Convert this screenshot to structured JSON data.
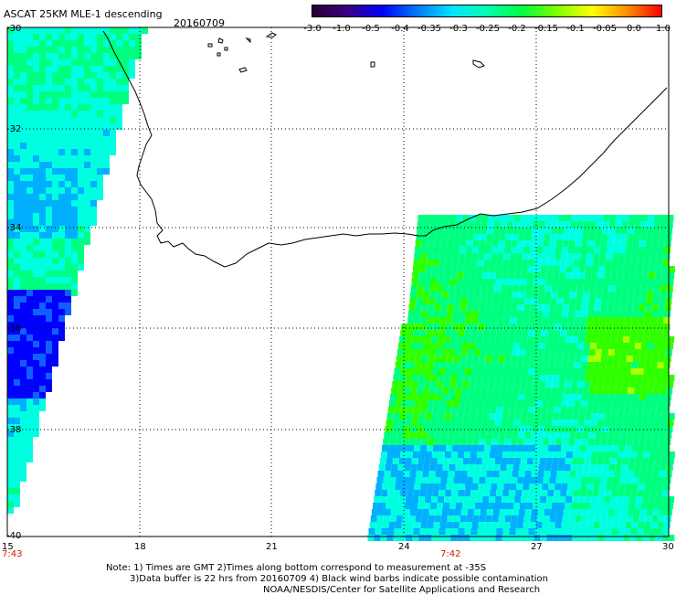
{
  "header": {
    "title": "ASCAT 25KM MLE-1 descending",
    "date": "20160709"
  },
  "colorbar": {
    "gradient": [
      "#2a0030",
      "#3a0080",
      "#0000ff",
      "#0077ff",
      "#00e5ff",
      "#00ffb0",
      "#00ff40",
      "#7dff00",
      "#ffff00",
      "#ff9000",
      "#ff0000"
    ],
    "ticks": [
      "-3.0",
      "-1.0",
      "-0.5",
      "-0.4",
      "-0.35",
      "-0.3",
      "-0.25",
      "-0.2",
      "-0.15",
      "-0.1",
      "-0.05",
      "0.0",
      "1.0"
    ]
  },
  "axes": {
    "lat_labels": [
      "-30",
      "-32",
      "-34",
      "-36",
      "-38",
      "-40"
    ],
    "lon_labels": [
      "15",
      "18",
      "21",
      "24",
      "27",
      "30"
    ]
  },
  "times": {
    "left": "7:43",
    "right": "7:42"
  },
  "notes": {
    "line1": "Note: 1) Times are GMT 2)Times along bottom correspond to measurement at -35S",
    "line2": "3)Data buffer is 22 hrs from 20160709 4) Black wind barbs indicate possible contamination",
    "line3": "NOAA/NESDIS/Center for Satellite Applications and Research"
  }
}
